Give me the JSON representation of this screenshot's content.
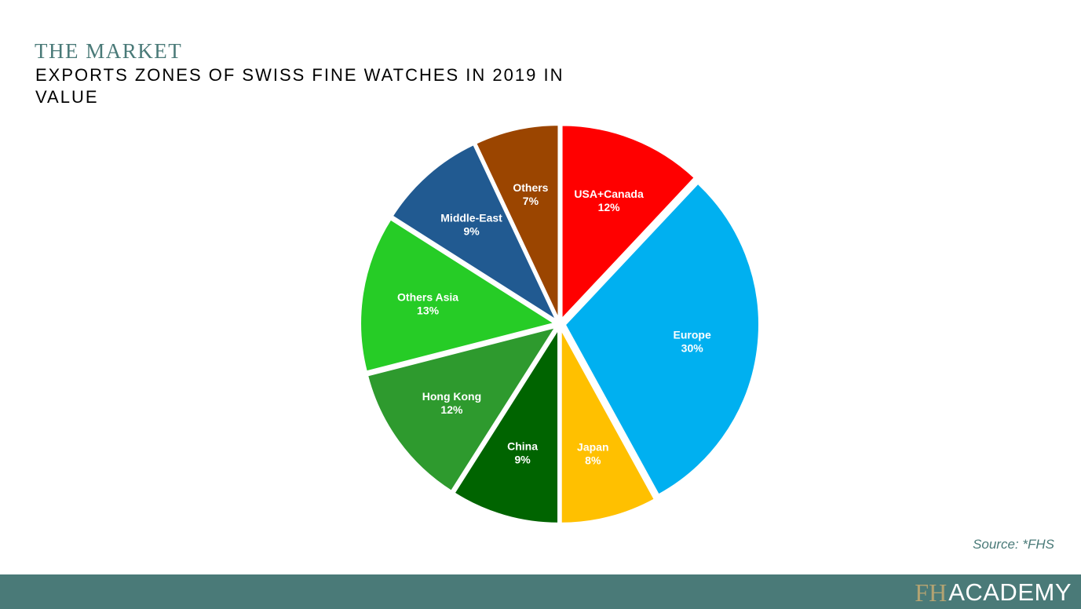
{
  "header": {
    "kicker": "THE MARKET",
    "title": "EXPORTS ZONES OF SWISS FINE WATCHES IN 2019 IN VALUE"
  },
  "chart_data": {
    "type": "pie",
    "title": "EXPORTS ZONES OF SWISS FINE WATCHES IN 2019 IN VALUE",
    "unit": "%",
    "slices": [
      {
        "label": "USA+Canada",
        "value": 12,
        "value_label": "12%",
        "color": "#ff0000"
      },
      {
        "label": "Europe",
        "value": 30,
        "value_label": "30%",
        "color": "#00b0f0"
      },
      {
        "label": "Japan",
        "value": 8,
        "value_label": "8%",
        "color": "#ffc000"
      },
      {
        "label": "China",
        "value": 9,
        "value_label": "9%",
        "color": "#006400"
      },
      {
        "label": "Hong Kong",
        "value": 12,
        "value_label": "12%",
        "color": "#2e9a2e"
      },
      {
        "label": "Others Asia",
        "value": 13,
        "value_label": "13%",
        "color": "#26cc26"
      },
      {
        "label": "Middle-East",
        "value": 9,
        "value_label": "9%",
        "color": "#215a91"
      },
      {
        "label": "Others",
        "value": 7,
        "value_label": "7%",
        "color": "#9b4500"
      }
    ]
  },
  "source": "Source: *FHS",
  "footer": {
    "brand_mark": "FH",
    "brand_name": "ACADEMY",
    "background": "#4a7a78"
  }
}
